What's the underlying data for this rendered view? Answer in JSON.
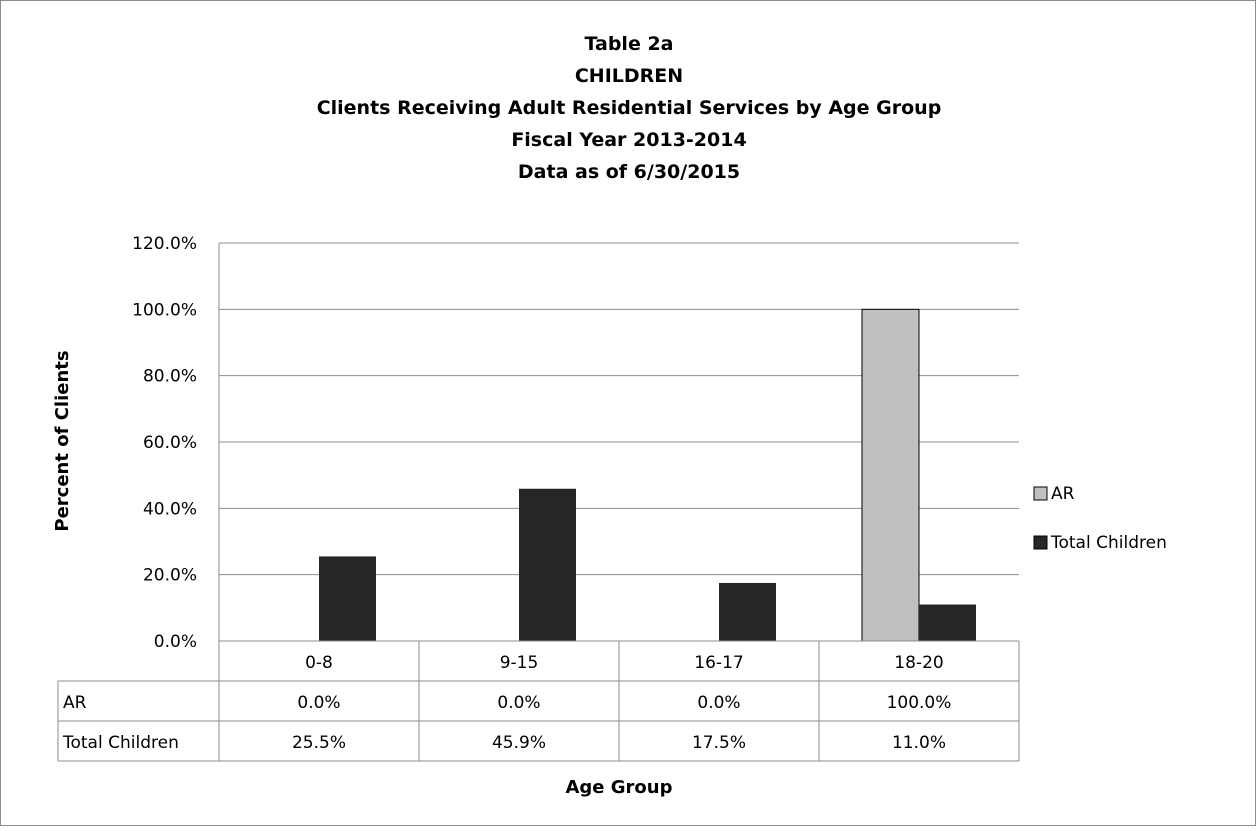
{
  "chart_data": {
    "type": "bar",
    "title_lines": [
      "Table 2a",
      "CHILDREN",
      "Clients Receiving Adult Residential Services by Age Group",
      "Fiscal Year 2013-2014",
      "Data as of 6/30/2015"
    ],
    "xlabel": "Age Group",
    "ylabel": "Percent of Clients",
    "categories": [
      "0-8",
      "9-15",
      "16-17",
      "18-20"
    ],
    "ylim": [
      0,
      120
    ],
    "yticks": [
      "0.0%",
      "20.0%",
      "40.0%",
      "60.0%",
      "80.0%",
      "100.0%",
      "120.0%"
    ],
    "grid": true,
    "legend_position": "right",
    "series": [
      {
        "name": "AR",
        "color": "#c0c0c0",
        "values": [
          0.0,
          0.0,
          0.0,
          100.0
        ],
        "labels": [
          "0.0%",
          "0.0%",
          "0.0%",
          "100.0%"
        ]
      },
      {
        "name": "Total Children",
        "color": "#262626",
        "values": [
          25.5,
          45.9,
          17.5,
          11.0
        ],
        "labels": [
          "25.5%",
          "45.9%",
          "17.5%",
          "11.0%"
        ]
      }
    ]
  }
}
